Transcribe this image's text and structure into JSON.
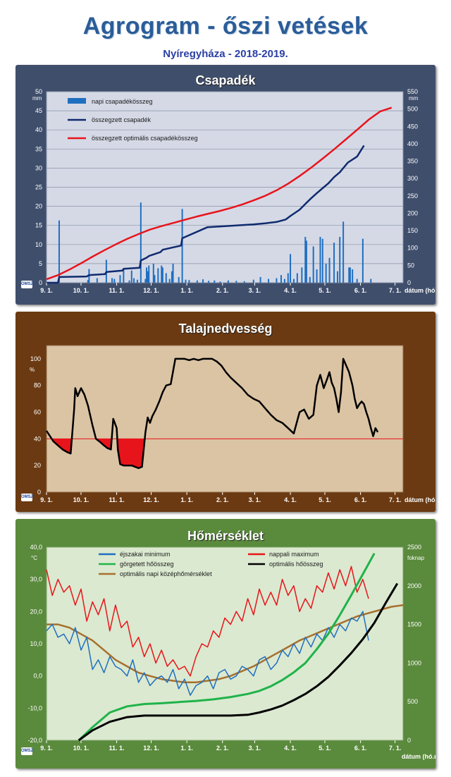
{
  "page": {
    "title": "Agrogram - őszi vetések",
    "subtitle": "Nyíregyháza  - 2018-2019.",
    "logo_text": "OMSZ"
  },
  "colors": {
    "panel1_bg": "#3f4e6b",
    "plot1_bg": "#d5d9e6",
    "panel2_bg": "#6b3a12",
    "plot2_bg": "#dbc4a4",
    "panel3_bg": "#5a8a3c",
    "plot3_bg": "#dbe9d0"
  },
  "x_axis": {
    "ticks": [
      "9. 1.",
      "10. 1.",
      "11. 1.",
      "12. 1.",
      "1. 1.",
      "2. 1.",
      "3. 1.",
      "4. 1.",
      "5. 1.",
      "6. 1.",
      "7. 1."
    ],
    "label": "dátum (hó.nap)"
  },
  "chart_data": [
    {
      "type": "bar",
      "title": "Csapadék",
      "ylabel_left": "mm",
      "ylabel_right": "mm",
      "ylim_left": [
        0,
        50
      ],
      "ylim_right": [
        0,
        550
      ],
      "yticks_left": [
        0,
        5,
        10,
        15,
        20,
        25,
        30,
        35,
        40,
        45,
        50
      ],
      "yticks_right": [
        0,
        50,
        100,
        150,
        200,
        250,
        300,
        350,
        400,
        450,
        500,
        550
      ],
      "grid": true,
      "legend_position": "top-left",
      "series": [
        {
          "name": "napi csapadékösszeg",
          "type": "bar",
          "axis": "left",
          "color": "#1f6fc0",
          "x": [
            11,
            36,
            37,
            44,
            52,
            57,
            59,
            64,
            67,
            72,
            74,
            76,
            79,
            82,
            86,
            87,
            88,
            89,
            93,
            94,
            97,
            100,
            101,
            104,
            107,
            109,
            110,
            115,
            118,
            121,
            124,
            131,
            136,
            141,
            146,
            151,
            158,
            165,
            172,
            180,
            186,
            193,
            200,
            204,
            207,
            210,
            212,
            215,
            218,
            222,
            225,
            226,
            229,
            232,
            235,
            238,
            240,
            243,
            246,
            250,
            253,
            255,
            258,
            263,
            264,
            266,
            270,
            275,
            282
          ],
          "values": [
            16.3,
            0.7,
            3.6,
            1.2,
            6.0,
            1.2,
            1.0,
            2.0,
            3.5,
            0.6,
            3.2,
            1.2,
            0.8,
            21.0,
            1.0,
            4.0,
            3.0,
            4.5,
            5.0,
            2.0,
            3.8,
            4.5,
            4.0,
            2.5,
            1.0,
            3.0,
            5.0,
            1.5,
            19.3,
            0.8,
            0.7,
            0.6,
            0.9,
            0.5,
            0.6,
            0.3,
            0.6,
            0.5,
            0.4,
            0.8,
            1.5,
            1.0,
            1.2,
            2.0,
            1.0,
            2.5,
            7.5,
            1.0,
            2.5,
            4.0,
            12.0,
            11.0,
            1.5,
            9.5,
            3.5,
            12.0,
            11.5,
            5.0,
            6.5,
            10.5,
            3.0,
            12.0,
            16.0,
            4.0,
            4.0,
            3.5,
            1.0,
            11.5,
            1.0
          ]
        },
        {
          "name": "összegzett csapadék",
          "type": "line",
          "axis": "right",
          "color": "#0f2a6e",
          "x": [
            0,
            10,
            11,
            35,
            37,
            51,
            52,
            66,
            67,
            81,
            82,
            87,
            89,
            99,
            101,
            117,
            118,
            140,
            150,
            160,
            170,
            180,
            190,
            200,
            208,
            212,
            220,
            225,
            230,
            235,
            240,
            245,
            250,
            255,
            262,
            270,
            276
          ],
          "values": [
            0,
            0,
            16.5,
            18,
            22,
            25,
            31,
            35,
            40,
            43,
            64,
            72,
            77,
            88,
            95,
            107,
            128,
            160,
            162,
            164,
            166,
            168,
            171,
            175,
            182,
            192,
            210,
            227,
            243,
            258,
            272,
            286,
            304,
            318,
            346,
            363,
            395
          ]
        },
        {
          "name": "összegzett optimális csapadékösszeg",
          "type": "line",
          "axis": "right",
          "color": "#e8141b",
          "x": [
            0,
            10,
            20,
            30,
            40,
            50,
            60,
            70,
            80,
            90,
            100,
            110,
            120,
            130,
            140,
            150,
            160,
            170,
            180,
            190,
            200,
            210,
            220,
            230,
            240,
            250,
            260,
            270,
            280,
            290,
            300
          ],
          "values": [
            10,
            22,
            38,
            56,
            75,
            93,
            110,
            126,
            140,
            153,
            163,
            172,
            181,
            190,
            198,
            206,
            215,
            225,
            237,
            250,
            266,
            285,
            307,
            331,
            357,
            384,
            412,
            440,
            469,
            493,
            504
          ]
        }
      ]
    },
    {
      "type": "line",
      "title": "Talajnedvesség",
      "ylabel": "%",
      "ylim": [
        0,
        110
      ],
      "yticks": [
        0,
        20,
        40,
        60,
        80,
        100
      ],
      "grid": false,
      "threshold": 40,
      "threshold_color": "#e8141b",
      "series": [
        {
          "name": "",
          "color": "#000000",
          "x": [
            0,
            3,
            6,
            10,
            14,
            18,
            21,
            24,
            25,
            27,
            30,
            33,
            36,
            40,
            43,
            46,
            50,
            53,
            56,
            58,
            61,
            62,
            64,
            67,
            70,
            74,
            77,
            80,
            83,
            86,
            88,
            90,
            92,
            95,
            98,
            101,
            104,
            108,
            112,
            116,
            120,
            124,
            128,
            132,
            136,
            140,
            144,
            148,
            152,
            156,
            160,
            165,
            170,
            175,
            180,
            185,
            190,
            195,
            200,
            205,
            210,
            215,
            220,
            224,
            228,
            232,
            235,
            238,
            241,
            244,
            246,
            248,
            250,
            252,
            254,
            256,
            258,
            260,
            263,
            266,
            268,
            270,
            272,
            274,
            276,
            278,
            280,
            282,
            284,
            286,
            288
          ],
          "values": [
            46,
            42,
            38,
            35,
            32,
            30,
            29,
            62,
            78,
            72,
            78,
            73,
            65,
            50,
            40,
            38,
            35,
            33,
            32,
            55,
            48,
            32,
            21,
            20,
            20,
            20,
            19,
            18,
            19,
            45,
            56,
            52,
            57,
            62,
            68,
            75,
            80,
            81,
            100,
            100,
            100,
            99,
            100,
            99,
            100,
            100,
            100,
            98,
            95,
            90,
            86,
            82,
            78,
            73,
            70,
            68,
            63,
            58,
            54,
            52,
            48,
            44,
            60,
            62,
            55,
            58,
            80,
            88,
            78,
            85,
            90,
            82,
            78,
            70,
            60,
            75,
            100,
            96,
            90,
            80,
            70,
            63,
            66,
            68,
            66,
            60,
            55,
            48,
            42,
            48,
            45
          ]
        }
      ]
    },
    {
      "type": "line",
      "title": "Hőmérséklet",
      "ylabel_left": "°C",
      "ylabel_right": "foknap",
      "ylim_left": [
        -20,
        40
      ],
      "ylim_right": [
        0,
        2500
      ],
      "yticks_left": [
        "-20,0",
        "-10,0",
        "0,0",
        "10,0",
        "20,0",
        "30,0",
        "40,0"
      ],
      "yticks_right": [
        0,
        500,
        1000,
        1500,
        2000,
        2500
      ],
      "grid": false,
      "legend_position": "top",
      "series": [
        {
          "name": "éjszakai minimum",
          "axis": "left",
          "color": "#1f6fc0",
          "x": [
            0,
            5,
            10,
            15,
            20,
            25,
            30,
            35,
            40,
            45,
            50,
            55,
            60,
            65,
            70,
            75,
            80,
            85,
            90,
            95,
            100,
            105,
            110,
            115,
            120,
            125,
            130,
            135,
            140,
            145,
            150,
            155,
            160,
            165,
            170,
            175,
            180,
            185,
            190,
            195,
            200,
            205,
            210,
            215,
            220,
            225,
            230,
            235,
            240,
            245,
            250,
            255,
            260,
            265,
            270,
            275,
            280
          ],
          "values": [
            14,
            16,
            12,
            13,
            10,
            15,
            8,
            12,
            2,
            5,
            1,
            6,
            3,
            2,
            0,
            5,
            -2,
            1,
            -3,
            -1,
            0,
            -2,
            2,
            -4,
            -1,
            -6,
            -3,
            -2,
            0,
            -4,
            1,
            2,
            -1,
            0,
            3,
            2,
            0,
            5,
            6,
            2,
            4,
            8,
            6,
            10,
            7,
            12,
            9,
            13,
            11,
            15,
            12,
            16,
            14,
            18,
            17,
            20,
            11
          ]
        },
        {
          "name": "nappali maximum",
          "axis": "left",
          "color": "#e8141b",
          "x": [
            0,
            5,
            10,
            15,
            20,
            25,
            30,
            35,
            40,
            45,
            50,
            55,
            60,
            65,
            70,
            75,
            80,
            85,
            90,
            95,
            100,
            105,
            110,
            115,
            120,
            125,
            130,
            135,
            140,
            145,
            150,
            155,
            160,
            165,
            170,
            175,
            180,
            185,
            190,
            195,
            200,
            205,
            210,
            215,
            220,
            225,
            230,
            235,
            240,
            245,
            250,
            255,
            260,
            265,
            270,
            275,
            280
          ],
          "values": [
            33,
            25,
            30,
            26,
            28,
            22,
            27,
            17,
            23,
            19,
            24,
            14,
            22,
            15,
            17,
            9,
            12,
            6,
            10,
            4,
            8,
            3,
            5,
            2,
            3,
            0,
            6,
            10,
            9,
            14,
            12,
            18,
            16,
            20,
            17,
            24,
            19,
            27,
            22,
            26,
            22,
            30,
            25,
            28,
            20,
            24,
            21,
            28,
            26,
            32,
            27,
            33,
            28,
            34,
            26,
            30,
            24
          ]
        },
        {
          "name": "görgetett hőösszeg",
          "axis": "right",
          "color": "#1fb34a",
          "x": [
            28,
            40,
            55,
            70,
            85,
            100,
            115,
            130,
            145,
            160,
            175,
            185,
            195,
            205,
            215,
            225,
            235,
            245,
            255,
            265,
            275,
            285
          ],
          "values": [
            0,
            170,
            360,
            440,
            470,
            480,
            495,
            510,
            530,
            560,
            600,
            640,
            700,
            780,
            880,
            1000,
            1180,
            1380,
            1620,
            1880,
            2150,
            2420
          ]
        },
        {
          "name": "optimális hőösszeg",
          "axis": "right",
          "color": "#000000",
          "x": [
            28,
            40,
            55,
            70,
            85,
            100,
            115,
            130,
            145,
            160,
            175,
            185,
            195,
            205,
            215,
            225,
            235,
            245,
            255,
            265,
            275,
            285,
            295,
            305
          ],
          "values": [
            0,
            130,
            240,
            300,
            320,
            320,
            320,
            320,
            320,
            320,
            330,
            360,
            400,
            450,
            520,
            600,
            700,
            820,
            970,
            1130,
            1310,
            1520,
            1780,
            2030
          ]
        },
        {
          "name": "optimális napi középhőmérséklet",
          "axis": "left",
          "color": "#a6702e",
          "x": [
            0,
            10,
            20,
            30,
            40,
            50,
            60,
            70,
            80,
            90,
            100,
            110,
            120,
            130,
            140,
            150,
            160,
            170,
            180,
            190,
            200,
            210,
            220,
            230,
            240,
            250,
            260,
            270,
            280,
            290,
            300,
            310
          ],
          "values": [
            16,
            16,
            15,
            13,
            11,
            8,
            5,
            3,
            1,
            0,
            -1,
            -1.5,
            -2,
            -2,
            -1.5,
            -1,
            0,
            1.5,
            3,
            5,
            7,
            9,
            11,
            12.5,
            14,
            15.5,
            17,
            18.5,
            19.5,
            20.5,
            21.5,
            22
          ]
        }
      ]
    }
  ]
}
